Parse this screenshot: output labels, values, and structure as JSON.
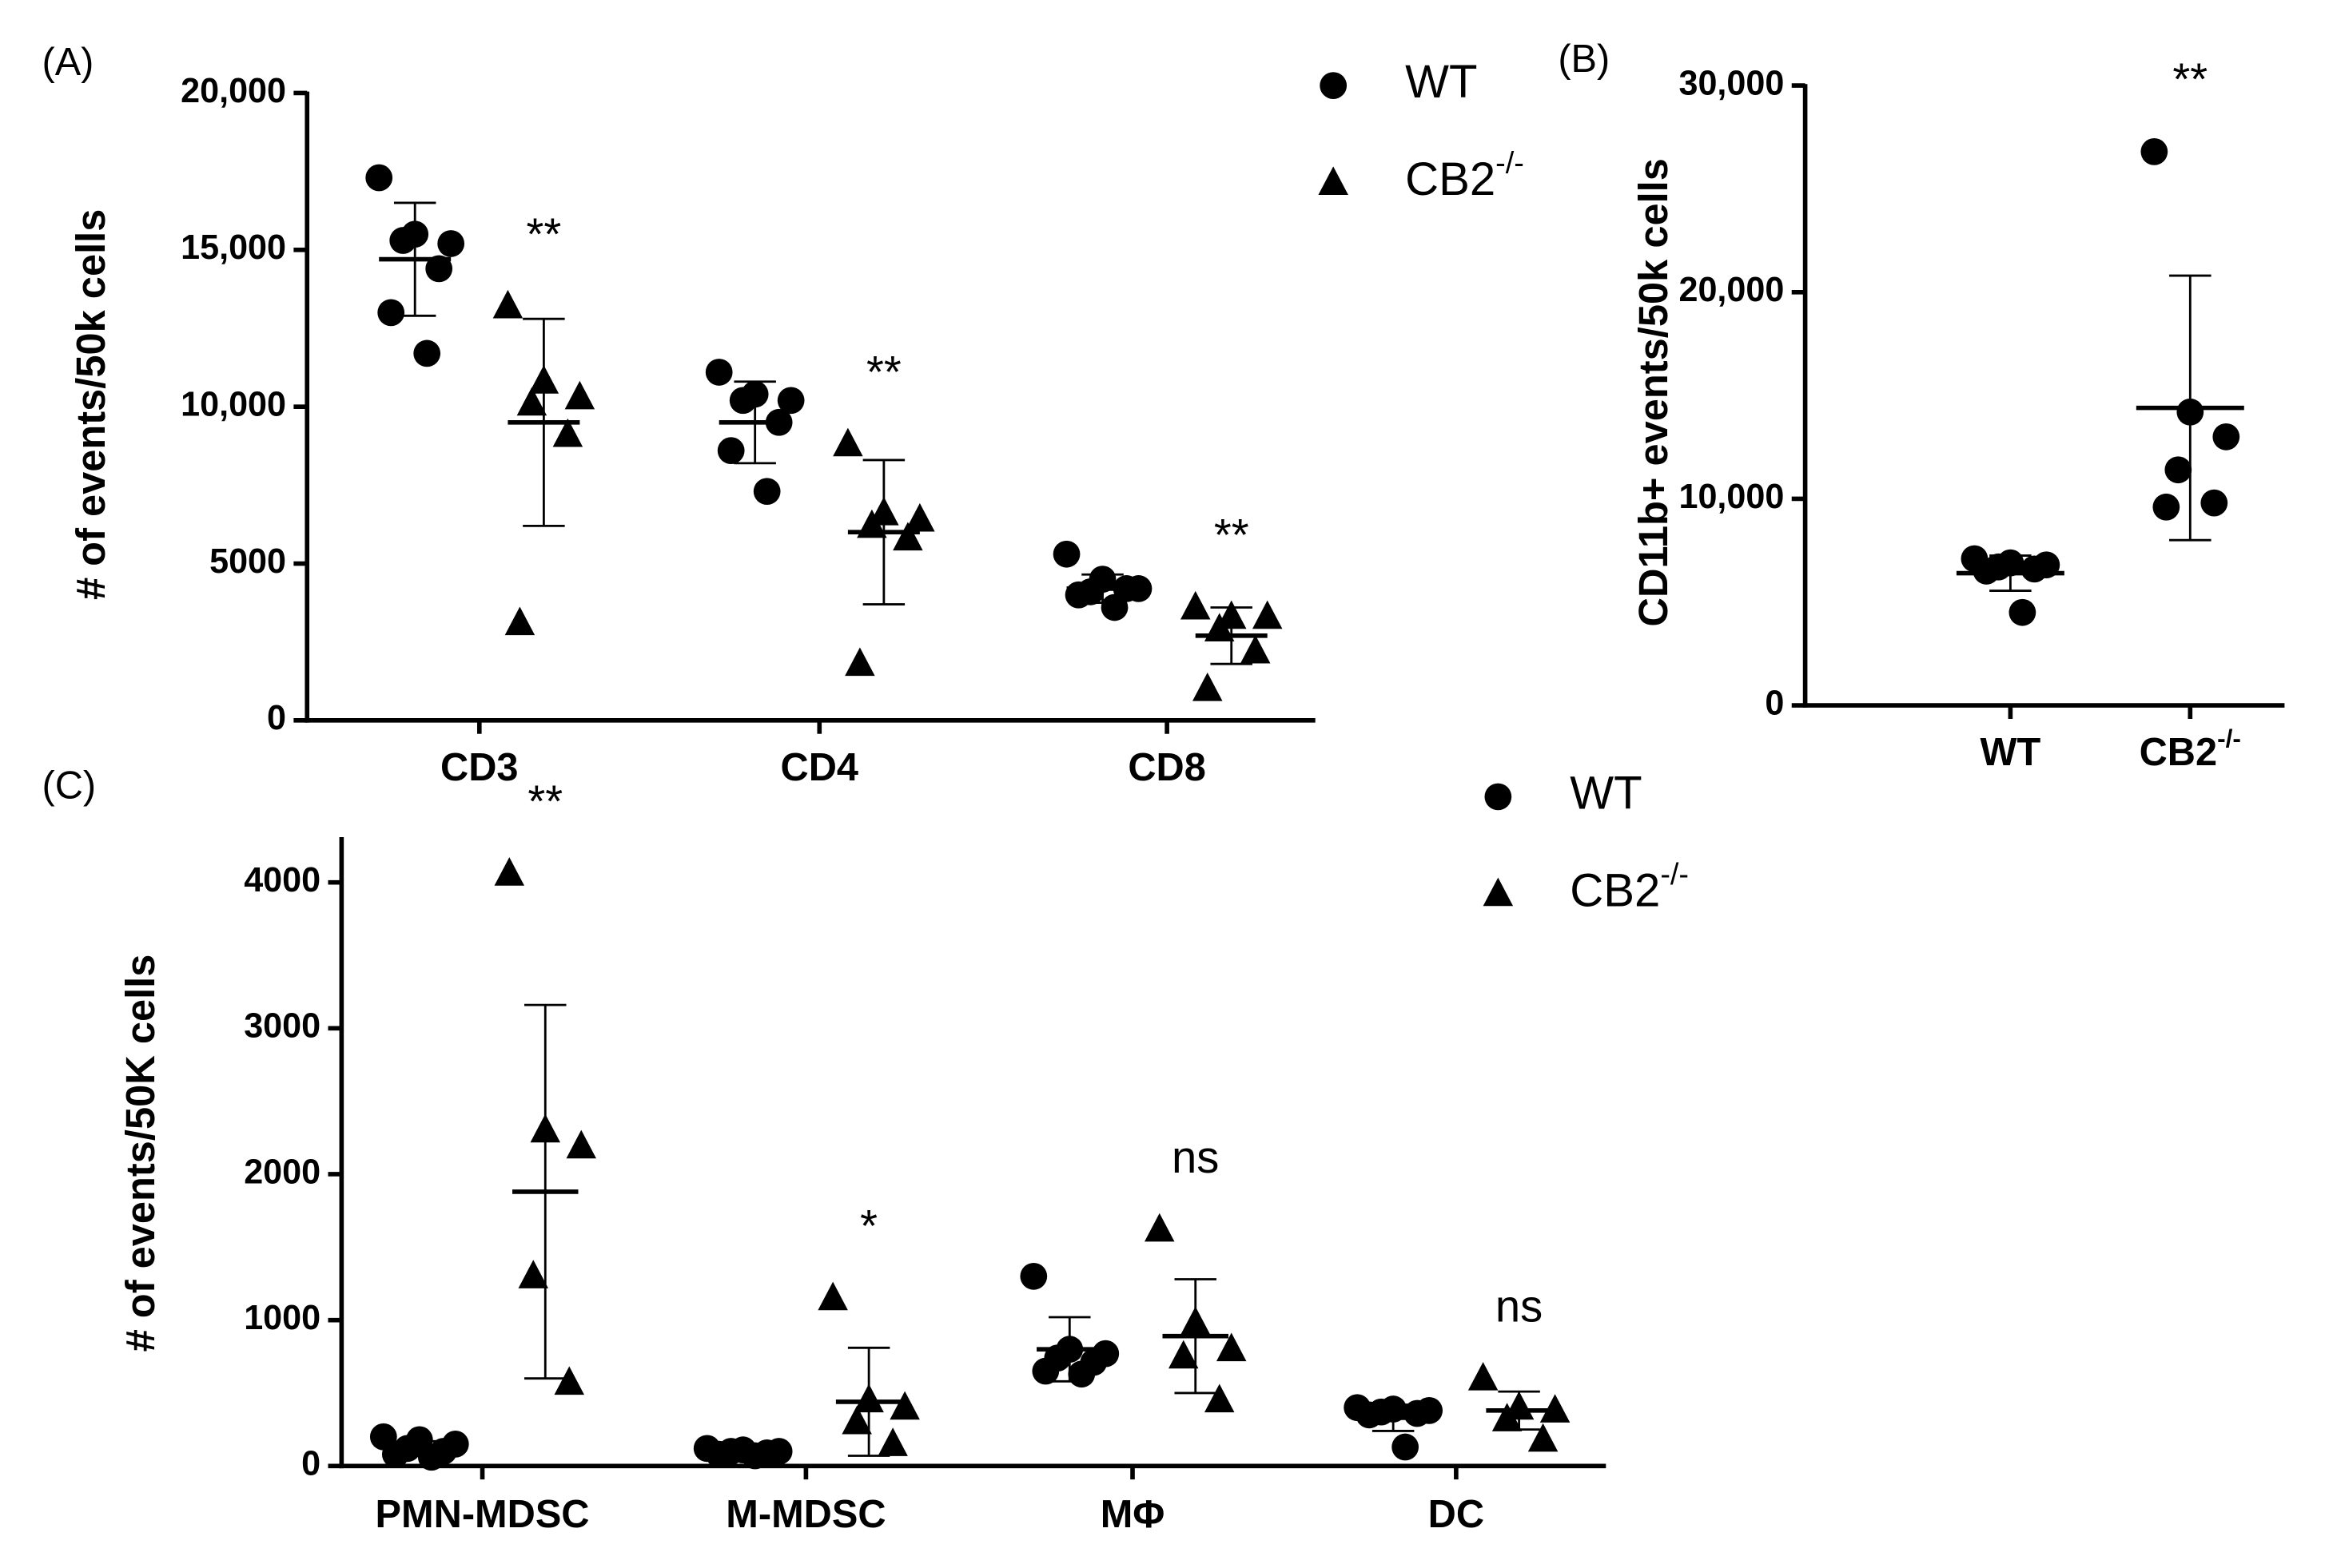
{
  "chart_data": [
    {
      "type": "scatter",
      "panel": "(A)",
      "ylabel": "# of events/50k cells",
      "categories": [
        "CD3",
        "CD4",
        "CD8"
      ],
      "ylim": [
        0,
        20000
      ],
      "yticks": [
        0,
        5000,
        {
          "value": 10000,
          "label": "10,000"
        },
        {
          "value": 15000,
          "label": "15,000"
        },
        {
          "value": 20000,
          "label": "20,000"
        }
      ],
      "series": [
        {
          "name": "WT",
          "marker": "circle",
          "color": "#000000",
          "points": [
            [
              17300,
              15500,
              15200,
              15300,
              14400,
              13000,
              11700
            ],
            [
              11100,
              10400,
              10200,
              10200,
              9500,
              8600,
              7300
            ],
            [
              5300,
              4500,
              4200,
              4100,
              4200,
              4000,
              3600
            ]
          ],
          "mean": [
            14700,
            9500,
            4200
          ],
          "sd": [
            1800,
            1300,
            450
          ]
        },
        {
          "name": "CB2",
          "name_superscript": "-/-",
          "marker": "triangle",
          "color": "#000000",
          "points": [
            [
              13200,
              10800,
              10300,
              10100,
              9100,
              3100
            ],
            [
              8800,
              6600,
              6400,
              6200,
              5800,
              1800
            ],
            [
              3600,
              3300,
              3300,
              2900,
              2200,
              1000
            ]
          ],
          "mean": [
            9500,
            6000,
            2700
          ],
          "sd": [
            3300,
            2300,
            900
          ]
        }
      ],
      "annotations": [
        {
          "series": 1,
          "category": 0,
          "text": "**"
        },
        {
          "series": 1,
          "category": 1,
          "text": "**"
        },
        {
          "series": 1,
          "category": 2,
          "text": "**"
        }
      ]
    },
    {
      "type": "scatter",
      "panel": "(B)",
      "ylabel": "CD11b+ events/50k cells",
      "categories": [
        "WT",
        "CB2"
      ],
      "category_superscripts": [
        null,
        "-/-"
      ],
      "ylim": [
        0,
        30000
      ],
      "yticks": [
        0,
        {
          "value": 10000,
          "label": "10,000"
        },
        {
          "value": 20000,
          "label": "20,000"
        },
        {
          "value": 30000,
          "label": "30,000"
        }
      ],
      "series": [
        {
          "marker": "circle",
          "color": "#000000",
          "points": [
            [
              7100,
              6900,
              6800,
              6700,
              6600,
              6500,
              4500
            ],
            [
              26800,
              14200,
              13000,
              11400,
              9800,
              9600
            ]
          ],
          "mean": [
            6400,
            14400
          ],
          "sd": [
            850,
            6400
          ]
        }
      ],
      "annotations": [
        {
          "series": 0,
          "category": 1,
          "text": "**"
        }
      ]
    },
    {
      "type": "scatter",
      "panel": "(C)",
      "ylabel": "# of events/50K cells",
      "categories": [
        "PMN-MDSC",
        "M-MDSC",
        "MΦ",
        "DC"
      ],
      "ylim": [
        0,
        4300
      ],
      "yticks": [
        0,
        1000,
        2000,
        3000,
        4000
      ],
      "series": [
        {
          "name": "WT",
          "marker": "circle",
          "color": "#000000",
          "points": [
            [
              200,
              180,
              150,
              120,
              100,
              80,
              60
            ],
            [
              120,
              110,
              100,
              100,
              90,
              80,
              70
            ],
            [
              1300,
              800,
              770,
              740,
              710,
              650,
              630
            ],
            [
              400,
              390,
              380,
              370,
              360,
              350,
              130
            ]
          ],
          "mean": [
            120,
            95,
            800,
            330
          ],
          "sd": [
            50,
            20,
            220,
            90
          ]
        },
        {
          "name": "CB2",
          "name_superscript": "-/-",
          "marker": "triangle",
          "color": "#000000",
          "points": [
            [
              4060,
              2300,
              2190,
              1300,
              570
            ],
            [
              1150,
              450,
              400,
              300,
              150
            ],
            [
              1620,
              980,
              800,
              750,
              450
            ],
            [
              600,
              400,
              380,
              320,
              180
            ]
          ],
          "mean": [
            1880,
            440,
            890,
            380
          ],
          "sd": [
            1280,
            370,
            390,
            130
          ]
        }
      ],
      "annotations": [
        {
          "series": 1,
          "category": 0,
          "text": "**"
        },
        {
          "series": 1,
          "category": 1,
          "text": "*"
        },
        {
          "series": 1,
          "category": 2,
          "text": "ns"
        },
        {
          "series": 1,
          "category": 3,
          "text": "ns"
        }
      ]
    }
  ]
}
